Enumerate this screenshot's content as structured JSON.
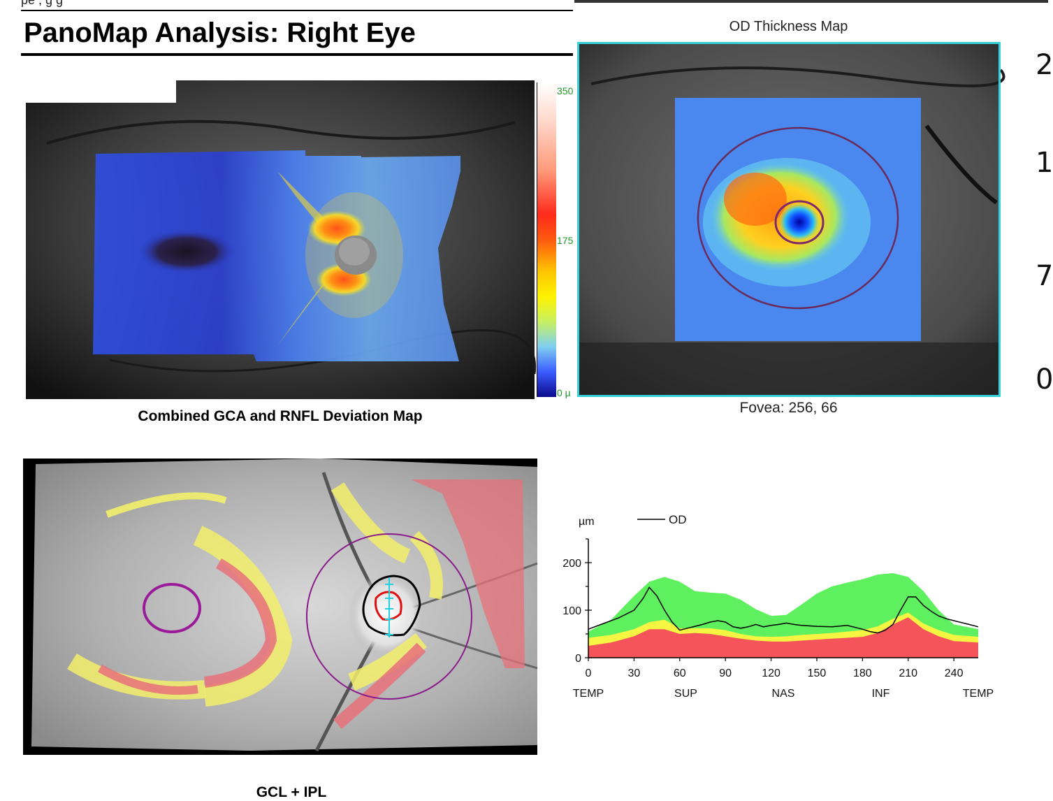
{
  "header": {
    "cut_text": "pe                                          ,                              g                g",
    "title": "PanoMap Analysis: Right Eye"
  },
  "deviation_map": {
    "caption": "Combined GCA and RNFL Deviation Map",
    "colorbar": {
      "top": "350",
      "mid": "175",
      "bottom": "0 µ",
      "label_color": "#1f9a2a"
    }
  },
  "thickness_map": {
    "title": "OD Thickness Map",
    "fovea": "Fovea: 256, 66",
    "frame_color": "#35d0d8",
    "side_scale": [
      "2",
      "1",
      "7",
      "0"
    ]
  },
  "gcl_map": {
    "caption": "GCL + IPL"
  },
  "chart_data": {
    "type": "line",
    "ylabel": "µm",
    "ylim": [
      0,
      250
    ],
    "yticks": [
      0,
      100,
      200
    ],
    "xlim": [
      0,
      256
    ],
    "xticks": [
      0,
      30,
      60,
      90,
      120,
      150,
      180,
      210,
      240
    ],
    "sector_labels": [
      "TEMP",
      "SUP",
      "NAS",
      "INF",
      "TEMP"
    ],
    "legend": "OD",
    "bands": {
      "x": [
        0,
        15,
        30,
        40,
        50,
        60,
        70,
        80,
        90,
        100,
        110,
        120,
        130,
        140,
        150,
        160,
        170,
        180,
        190,
        200,
        210,
        220,
        230,
        240,
        256
      ],
      "red_top": [
        25,
        32,
        45,
        60,
        60,
        50,
        52,
        50,
        45,
        40,
        36,
        34,
        34,
        36,
        38,
        40,
        42,
        44,
        52,
        70,
        85,
        60,
        45,
        35,
        32
      ],
      "yellow_top": [
        42,
        48,
        60,
        75,
        80,
        62,
        62,
        62,
        58,
        50,
        45,
        44,
        45,
        48,
        50,
        52,
        55,
        58,
        66,
        82,
        95,
        72,
        58,
        48,
        44
      ],
      "green_top": [
        55,
        80,
        130,
        160,
        170,
        160,
        140,
        137,
        135,
        122,
        102,
        88,
        90,
        112,
        135,
        150,
        158,
        165,
        175,
        178,
        170,
        140,
        100,
        70,
        60
      ]
    },
    "series": [
      {
        "name": "OD",
        "x": [
          0,
          10,
          20,
          30,
          36,
          40,
          45,
          50,
          55,
          60,
          65,
          70,
          75,
          80,
          85,
          90,
          95,
          100,
          105,
          110,
          115,
          120,
          125,
          130,
          135,
          140,
          150,
          160,
          170,
          180,
          185,
          190,
          195,
          200,
          205,
          210,
          215,
          220,
          225,
          230,
          235,
          240,
          250,
          256
        ],
        "y": [
          60,
          72,
          84,
          100,
          125,
          148,
          130,
          100,
          75,
          58,
          62,
          66,
          70,
          75,
          78,
          75,
          65,
          62,
          65,
          70,
          65,
          68,
          70,
          73,
          70,
          68,
          66,
          65,
          68,
          60,
          55,
          52,
          58,
          70,
          100,
          128,
          128,
          110,
          98,
          88,
          82,
          78,
          70,
          65
        ]
      }
    ],
    "colors": {
      "normal": "#5ef05e",
      "borderline": "#f5f542",
      "outside": "#f5555a",
      "line": "#000000"
    }
  }
}
